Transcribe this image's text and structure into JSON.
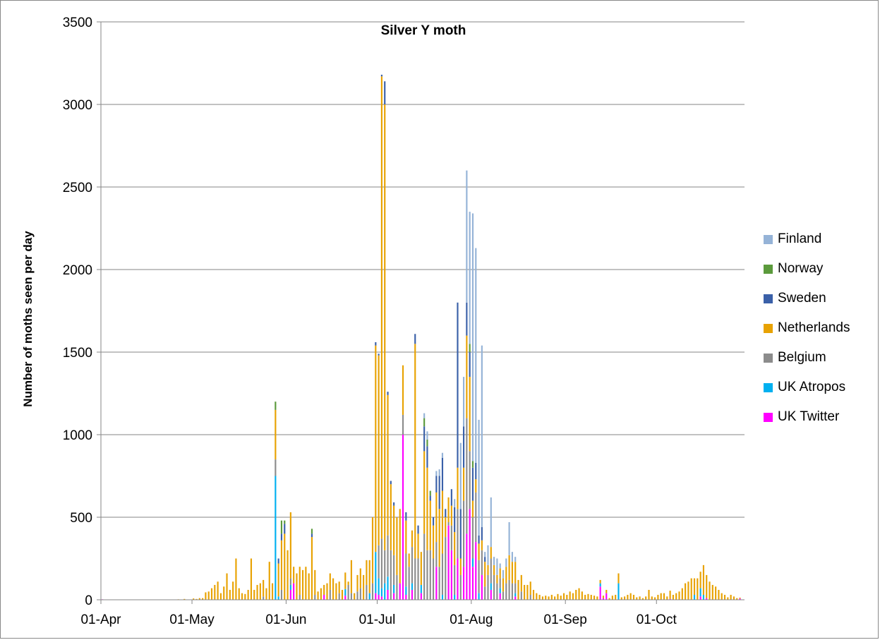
{
  "chart_data": {
    "type": "bar",
    "stacked": true,
    "title": "Silver Y moth",
    "ylabel": "Number of moths seen per day",
    "xlabel": "",
    "ylim": [
      0,
      3500
    ],
    "yticks": [
      0,
      500,
      1000,
      1500,
      2000,
      2500,
      3000,
      3500
    ],
    "x_start": "01-Apr",
    "x_end": "29-Oct",
    "xtick_labels": [
      "01-Apr",
      "01-May",
      "01-Jun",
      "01-Jul",
      "01-Aug",
      "01-Sep",
      "01-Oct"
    ],
    "grid": "horizontal",
    "legend_position": "right",
    "series": [
      {
        "name": "UK Twitter",
        "color": "#ff00ff",
        "values": {
          "01-Apr": 3,
          "02-Jun": 60,
          "03-Jun": 100,
          "13-Jun": 30,
          "20-Jun": 25,
          "30-Jun": 40,
          "01-Jul": 30,
          "02-Jul": 20,
          "04-Jul": 60,
          "06-Jul": 40,
          "08-Jul": 100,
          "09-Jul": 1000,
          "10-Jul": 30,
          "12-Jul": 60,
          "15-Jul": 40,
          "20-Jul": 200,
          "24-Jul": 450,
          "25-Jul": 300,
          "27-Jul": 250,
          "29-Jul": 200,
          "30-Jul": 400,
          "31-Jul": 550,
          "01-Aug": 200,
          "02-Aug": 350,
          "04-Aug": 150,
          "07-Aug": 60,
          "10-Aug": 40,
          "15-Aug": 20,
          "12-Sep": 80,
          "13-Sep": 10,
          "14-Sep": 40,
          "05-Oct": 5,
          "15-Oct": 20,
          "17-Oct": 10,
          "28-Oct": 8
        }
      },
      {
        "name": "UK Atropos",
        "color": "#00b0f0",
        "values": {
          "28-May": 750,
          "29-May": 20,
          "02-Jun": 30,
          "20-Jun": 40,
          "28-Jun": 40,
          "30-Jun": 250,
          "01-Jul": 100,
          "02-Jul": 50,
          "03-Jul": 100,
          "04-Jul": 80,
          "06-Jul": 50,
          "10-Jul": 50,
          "12-Jul": 40,
          "15-Jul": 50,
          "22-Jul": 30,
          "26-Jul": 30,
          "01-Aug": 50,
          "03-Aug": 40,
          "07-Aug": 40,
          "10-Aug": 30,
          "15-Aug": 20,
          "12-Sep": 20,
          "18-Sep": 100,
          "13-Oct": 30,
          "15-Oct": 50,
          "16-Oct": 30
        }
      },
      {
        "name": "Belgium",
        "color": "#8c8c8c",
        "values": {
          "24-May": 20,
          "28-May": 100,
          "30-May": 60,
          "02-Jun": 40,
          "05-Jun": 30,
          "10-Jun": 30,
          "15-Jun": 60,
          "18-Jun": 40,
          "21-Jun": 90,
          "22-Jun": 40,
          "24-Jun": 50,
          "25-Jun": 70,
          "27-Jun": 90,
          "29-Jun": 100,
          "01-Jul": 200,
          "02-Jul": 300,
          "03-Jul": 200,
          "04-Jul": 250,
          "05-Jul": 300,
          "06-Jul": 180,
          "07-Jul": 150,
          "09-Jul": 120,
          "10-Jul": 200,
          "11-Jul": 200,
          "12-Jul": 220,
          "13-Jul": 250,
          "14-Jul": 250,
          "16-Jul": 400,
          "17-Jul": 300,
          "18-Jul": 300,
          "19-Jul": 250,
          "20-Jul": 150,
          "21-Jul": 200,
          "22-Jul": 250,
          "23-Jul": 380,
          "24-Jul": 20,
          "25-Jul": 150,
          "26-Jul": 180,
          "27-Jul": 300,
          "28-Jul": 150,
          "29-Jul": 400,
          "30-Jul": 700,
          "31-Jul": 350,
          "01-Aug": 250,
          "02-Aug": 300,
          "03-Aug": 200,
          "04-Aug": 150,
          "05-Aug": 80,
          "06-Aug": 150,
          "07-Aug": 150,
          "08-Aug": 150,
          "09-Aug": 100,
          "10-Aug": 60,
          "11-Aug": 50,
          "12-Aug": 100,
          "13-Aug": 120,
          "14-Aug": 100,
          "15-Aug": 60,
          "17-Aug": 50,
          "20-Aug": 30
        }
      },
      {
        "name": "Netherlands",
        "color": "#e8a202",
        "values": {
          "26-Apr": 3,
          "28-Apr": 5,
          "01-May": 8,
          "02-May": 5,
          "03-May": 10,
          "04-May": 10,
          "05-May": 45,
          "06-May": 50,
          "07-May": 70,
          "08-May": 90,
          "09-May": 110,
          "10-May": 40,
          "11-May": 80,
          "12-May": 160,
          "13-May": 60,
          "14-May": 110,
          "15-May": 250,
          "16-May": 70,
          "17-May": 40,
          "18-May": 35,
          "19-May": 60,
          "20-May": 250,
          "21-May": 60,
          "22-May": 90,
          "23-May": 100,
          "24-May": 100,
          "25-May": 70,
          "26-May": 230,
          "27-May": 100,
          "28-May": 300,
          "29-May": 200,
          "30-May": 300,
          "31-May": 400,
          "01-Jun": 300,
          "02-Jun": 400,
          "03-Jun": 100,
          "04-Jun": 160,
          "05-Jun": 170,
          "06-Jun": 180,
          "07-Jun": 200,
          "08-Jun": 160,
          "09-Jun": 380,
          "10-Jun": 150,
          "11-Jun": 50,
          "12-Jun": 70,
          "13-Jun": 60,
          "14-Jun": 100,
          "15-Jun": 100,
          "16-Jun": 130,
          "17-Jun": 100,
          "18-Jun": 70,
          "19-Jun": 60,
          "20-Jun": 100,
          "21-Jun": 20,
          "22-Jun": 200,
          "23-Jun": 40,
          "24-Jun": 100,
          "25-Jun": 120,
          "26-Jun": 150,
          "27-Jun": 150,
          "28-Jun": 200,
          "29-Jun": 400,
          "30-Jun": 1250,
          "01-Jul": 1150,
          "02-Jul": 2800,
          "03-Jul": 2700,
          "04-Jul": 850,
          "05-Jul": 400,
          "06-Jul": 300,
          "07-Jul": 350,
          "08-Jul": 450,
          "09-Jul": 300,
          "10-Jul": 200,
          "11-Jul": 80,
          "12-Jul": 100,
          "13-Jul": 1300,
          "14-Jul": 150,
          "15-Jul": 200,
          "16-Jul": 500,
          "17-Jul": 500,
          "18-Jul": 300,
          "19-Jul": 200,
          "20-Jul": 300,
          "21-Jul": 350,
          "22-Jul": 380,
          "23-Jul": 120,
          "24-Jul": 150,
          "25-Jul": 120,
          "26-Jul": 200,
          "27-Jul": 250,
          "28-Jul": 100,
          "29-Jul": 200,
          "30-Jul": 500,
          "31-Jul": 450,
          "01-Aug": 100,
          "02-Aug": 80,
          "03-Aug": 100,
          "04-Aug": 60,
          "05-Aug": 150,
          "06-Aug": 60,
          "07-Aug": 70,
          "08-Aug": 60,
          "09-Aug": 50,
          "10-Aug": 60,
          "11-Aug": 80,
          "12-Aug": 100,
          "13-Aug": 150,
          "14-Aug": 130,
          "15-Aug": 130,
          "16-Aug": 120,
          "17-Aug": 100,
          "18-Aug": 90,
          "19-Aug": 90,
          "20-Aug": 80,
          "21-Aug": 60,
          "22-Aug": 40,
          "23-Aug": 30,
          "24-Aug": 20,
          "25-Aug": 25,
          "26-Aug": 20,
          "27-Aug": 30,
          "28-Aug": 20,
          "29-Aug": 35,
          "30-Aug": 25,
          "31-Aug": 40,
          "01-Sep": 30,
          "02-Sep": 50,
          "03-Sep": 40,
          "04-Sep": 60,
          "05-Sep": 70,
          "06-Sep": 50,
          "07-Sep": 30,
          "08-Sep": 35,
          "09-Sep": 30,
          "10-Sep": 25,
          "11-Sep": 20,
          "12-Sep": 20,
          "13-Sep": 15,
          "14-Sep": 20,
          "15-Sep": 10,
          "16-Sep": 25,
          "17-Sep": 30,
          "18-Sep": 60,
          "19-Sep": 15,
          "20-Sep": 20,
          "21-Sep": 30,
          "22-Sep": 40,
          "23-Sep": 30,
          "24-Sep": 15,
          "25-Sep": 20,
          "26-Sep": 10,
          "27-Sep": 20,
          "28-Sep": 60,
          "29-Sep": 20,
          "30-Sep": 15,
          "01-Oct": 30,
          "02-Oct": 40,
          "03-Oct": 40,
          "04-Oct": 20,
          "05-Oct": 50,
          "06-Oct": 30,
          "07-Oct": 40,
          "08-Oct": 50,
          "09-Oct": 70,
          "10-Oct": 100,
          "11-Oct": 110,
          "12-Oct": 130,
          "13-Oct": 100,
          "14-Oct": 130,
          "15-Oct": 100,
          "16-Oct": 180,
          "17-Oct": 140,
          "18-Oct": 110,
          "19-Oct": 90,
          "20-Oct": 80,
          "21-Oct": 60,
          "22-Oct": 40,
          "23-Oct": 30,
          "24-Oct": 15,
          "25-Oct": 30,
          "26-Oct": 20,
          "27-Oct": 10,
          "28-Oct": 5
        }
      },
      {
        "name": "Sweden",
        "color": "#3a60a8",
        "values": {
          "29-May": 30,
          "30-May": 40,
          "31-May": 60,
          "09-Jun": 20,
          "30-Jun": 20,
          "01-Jul": 10,
          "02-Jul": 10,
          "03-Jul": 140,
          "04-Jul": 20,
          "05-Jul": 20,
          "06-Jul": 20,
          "10-Jul": 50,
          "13-Jul": 60,
          "14-Jul": 50,
          "16-Jul": 150,
          "17-Jul": 130,
          "18-Jul": 30,
          "19-Jul": 50,
          "20-Jul": 100,
          "21-Jul": 200,
          "22-Jul": 200,
          "23-Jul": 50,
          "25-Jul": 100,
          "26-Jul": 150,
          "27-Jul": 1000,
          "28-Jul": 300,
          "29-Jul": 250,
          "30-Jul": 200,
          "31-Jul": 150,
          "01-Aug": 200,
          "02-Aug": 100,
          "03-Aug": 50,
          "04-Aug": 80,
          "05-Aug": 30
        }
      },
      {
        "name": "Norway",
        "color": "#5b9a3c",
        "values": {
          "28-May": 50,
          "30-May": 80,
          "31-May": 20,
          "09-Jun": 30,
          "16-Jul": 50,
          "17-Jul": 40,
          "18-Jul": 30,
          "31-Jul": 50,
          "01-Aug": 40
        }
      },
      {
        "name": "Finland",
        "color": "#95b3d7",
        "values": {
          "16-Jul": 30,
          "17-Jul": 50,
          "20-Jul": 30,
          "21-Jul": 40,
          "22-Jul": 30,
          "26-Jul": 50,
          "28-Jul": 400,
          "29-Jul": 300,
          "30-Jul": 800,
          "31-Jul": 800,
          "01-Aug": 1500,
          "02-Aug": 1300,
          "03-Aug": 700,
          "04-Aug": 1100,
          "05-Aug": 30,
          "06-Aug": 120,
          "07-Aug": 300,
          "08-Aug": 50,
          "09-Aug": 100,
          "10-Aug": 30,
          "11-Aug": 50,
          "12-Aug": 50,
          "13-Aug": 200,
          "14-Aug": 60,
          "15-Aug": 30
        }
      }
    ]
  }
}
